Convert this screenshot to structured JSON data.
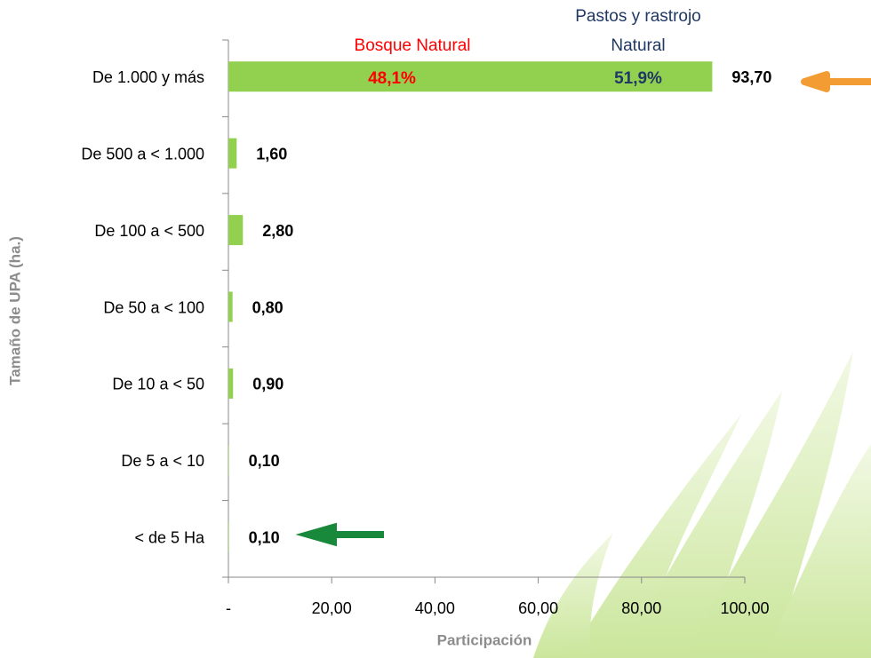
{
  "chart_data": {
    "type": "bar",
    "categories": [
      "De 1.000 y más",
      "De 500 a < 1.000",
      "De 100 a < 500",
      "De 50 a < 100",
      "De 10 a < 50",
      "De 5 a < 10",
      "< de 5 Ha"
    ],
    "values": [
      93.7,
      1.6,
      2.8,
      0.8,
      0.9,
      0.1,
      0.1
    ],
    "value_labels": [
      "93,70",
      "1,60",
      "2,80",
      "0,80",
      "0,90",
      "0,10",
      "0,10"
    ],
    "color": "#92d050",
    "xlim": [
      0,
      100
    ],
    "xticks": [
      {
        "value": 0,
        "label": "-"
      },
      {
        "value": 20,
        "label": "20,00"
      },
      {
        "value": 40,
        "label": "40,00"
      },
      {
        "value": 60,
        "label": "60,00"
      },
      {
        "value": 80,
        "label": "80,00"
      },
      {
        "value": 100,
        "label": "100,00"
      }
    ],
    "x_label": "Participación",
    "y_label": "Tamaño de UPA (ha.)",
    "annotations": [
      {
        "text": "Bosque Natural",
        "color": "#ff0000"
      },
      {
        "text": "48,1%",
        "color": "#ff0000"
      },
      {
        "text": "Pastos y rastrojo",
        "color": "#1f3864"
      },
      {
        "text": "Natural",
        "color": "#1f3864"
      },
      {
        "text": "51,9%",
        "color": "#1f3864"
      }
    ]
  }
}
